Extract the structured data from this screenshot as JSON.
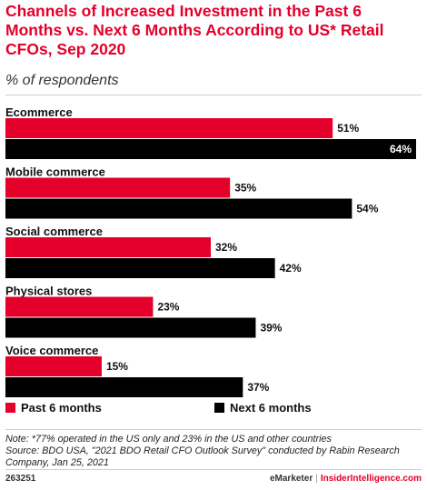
{
  "title": "Channels of Increased Investment in the Past 6 Months vs. Next 6 Months According to US* Retail CFOs, Sep 2020",
  "subtitle": "% of respondents",
  "colors": {
    "past": "#e4002b",
    "next": "#000000",
    "title": "#e4002b"
  },
  "chart_data": {
    "type": "bar",
    "orientation": "horizontal",
    "title": "Channels of Increased Investment in the Past 6 Months vs. Next 6 Months According to US* Retail CFOs, Sep 2020",
    "subtitle": "% of respondents",
    "categories": [
      "Ecommerce",
      "Mobile commerce",
      "Social commerce",
      "Physical stores",
      "Voice commerce"
    ],
    "series": [
      {
        "name": "Past 6 months",
        "values": [
          51,
          35,
          32,
          23,
          15
        ],
        "color": "#e4002b"
      },
      {
        "name": "Next 6 months",
        "values": [
          64,
          54,
          42,
          39,
          37
        ],
        "color": "#000000"
      }
    ],
    "value_suffix": "%",
    "xlim": [
      0,
      64
    ],
    "grid": false,
    "legend": "bottom"
  },
  "note": "Note: *77% operated in the US only and 23% in the US and other countries",
  "source": "Source: BDO USA, \"2021 BDO Retail CFO Outlook Survey\" conducted by Rabin Research Company, Jan 25, 2021",
  "footer": {
    "id": "263251",
    "brand": "eMarketer",
    "separator": "|",
    "site": "InsiderIntelligence.com"
  }
}
